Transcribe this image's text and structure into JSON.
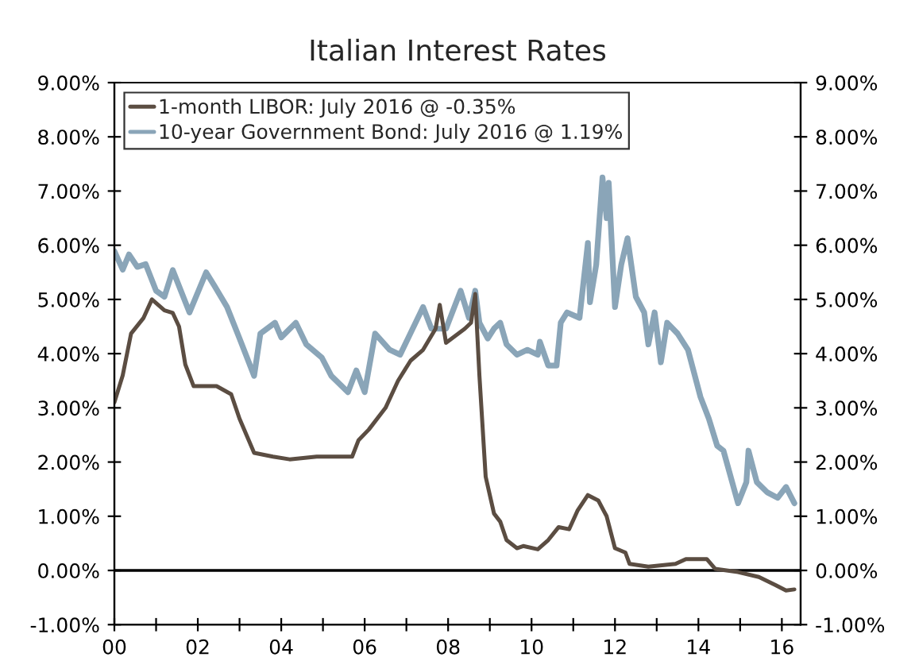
{
  "chart_data": {
    "type": "line",
    "title": "Italian Interest Rates",
    "xlim": [
      2000,
      2016.45
    ],
    "xticks": [
      {
        "value": 2000,
        "label": "00"
      },
      {
        "value": 2001,
        "label": null
      },
      {
        "value": 2002,
        "label": "02"
      },
      {
        "value": 2003,
        "label": null
      },
      {
        "value": 2004,
        "label": "04"
      },
      {
        "value": 2005,
        "label": null
      },
      {
        "value": 2006,
        "label": "06"
      },
      {
        "value": 2007,
        "label": null
      },
      {
        "value": 2008,
        "label": "08"
      },
      {
        "value": 2009,
        "label": null
      },
      {
        "value": 2010,
        "label": "10"
      },
      {
        "value": 2011,
        "label": null
      },
      {
        "value": 2012,
        "label": "12"
      },
      {
        "value": 2013,
        "label": null
      },
      {
        "value": 2014,
        "label": "14"
      },
      {
        "value": 2015,
        "label": null
      },
      {
        "value": 2016,
        "label": "16"
      }
    ],
    "ylim": [
      -1,
      9
    ],
    "yticks": [
      {
        "value": -1,
        "label": "-1.00%"
      },
      {
        "value": 0,
        "label": "0.00%"
      },
      {
        "value": 1,
        "label": "1.00%"
      },
      {
        "value": 2,
        "label": "2.00%"
      },
      {
        "value": 3,
        "label": "3.00%"
      },
      {
        "value": 4,
        "label": "4.00%"
      },
      {
        "value": 5,
        "label": "5.00%"
      },
      {
        "value": 6,
        "label": "6.00%"
      },
      {
        "value": 7,
        "label": "7.00%"
      },
      {
        "value": 8,
        "label": "8.00%"
      },
      {
        "value": 9,
        "label": "9.00%"
      }
    ],
    "y2lim": [
      -1,
      9
    ],
    "y2ticks": [
      {
        "value": -1,
        "label": "-1.00%"
      },
      {
        "value": 0,
        "label": "0.00%"
      },
      {
        "value": 1,
        "label": "1.00%"
      },
      {
        "value": 2,
        "label": "2.00%"
      },
      {
        "value": 3,
        "label": "3.00%"
      },
      {
        "value": 4,
        "label": "4.00%"
      },
      {
        "value": 5,
        "label": "5.00%"
      },
      {
        "value": 6,
        "label": "6.00%"
      },
      {
        "value": 7,
        "label": "7.00%"
      },
      {
        "value": 8,
        "label": "8.00%"
      },
      {
        "value": 9,
        "label": "9.00%"
      }
    ],
    "ref_lines": [
      {
        "axis": "y",
        "value": 0,
        "color": "#000000"
      }
    ],
    "grid": false,
    "legend": "top left",
    "line_style": "solid",
    "marker": "none",
    "series": [
      {
        "name": "1-month LIBOR: July 2016 @ -0.35%",
        "color": "#5b4d42",
        "x": [
          2000.0,
          2000.2,
          2000.4,
          2000.7,
          2000.9,
          2001.2,
          2001.4,
          2001.55,
          2001.7,
          2001.9,
          2002.45,
          2002.8,
          2003.0,
          2003.35,
          2003.8,
          2004.2,
          2004.85,
          2005.7,
          2005.85,
          2006.1,
          2006.5,
          2006.8,
          2007.1,
          2007.4,
          2007.7,
          2007.8,
          2007.95,
          2008.4,
          2008.55,
          2008.65,
          2008.75,
          2008.9,
          2009.1,
          2009.25,
          2009.4,
          2009.65,
          2009.8,
          2010.15,
          2010.4,
          2010.65,
          2010.9,
          2011.1,
          2011.35,
          2011.6,
          2011.8,
          2012.0,
          2012.25,
          2012.35,
          2012.8,
          2013.45,
          2013.7,
          2014.2,
          2014.4,
          2014.95,
          2015.45,
          2015.85,
          2016.1,
          2016.3
        ],
        "values": [
          3.1,
          3.6,
          4.37,
          4.66,
          5.0,
          4.8,
          4.75,
          4.5,
          3.8,
          3.4,
          3.4,
          3.25,
          2.8,
          2.17,
          2.1,
          2.05,
          2.1,
          2.1,
          2.4,
          2.6,
          3.0,
          3.5,
          3.87,
          4.07,
          4.46,
          4.9,
          4.2,
          4.46,
          4.57,
          5.1,
          3.6,
          1.73,
          1.05,
          0.9,
          0.56,
          0.41,
          0.45,
          0.39,
          0.56,
          0.8,
          0.76,
          1.1,
          1.39,
          1.29,
          1.0,
          0.41,
          0.33,
          0.12,
          0.07,
          0.12,
          0.21,
          0.21,
          0.03,
          -0.03,
          -0.12,
          -0.27,
          -0.37,
          -0.35
        ]
      },
      {
        "name": "10-year Government Bond: July 2016 @ 1.19%",
        "color": "#8aa5b8",
        "x": [
          2000.0,
          2000.2,
          2000.35,
          2000.55,
          2000.75,
          2001.0,
          2001.2,
          2001.4,
          2001.8,
          2002.2,
          2002.4,
          2002.7,
          2003.0,
          2003.35,
          2003.5,
          2003.85,
          2004.0,
          2004.35,
          2004.6,
          2004.97,
          2005.2,
          2005.6,
          2005.8,
          2006.0,
          2006.25,
          2006.6,
          2006.85,
          2007.4,
          2007.6,
          2007.95,
          2008.3,
          2008.5,
          2008.65,
          2008.75,
          2008.95,
          2009.1,
          2009.25,
          2009.4,
          2009.65,
          2009.9,
          2010.15,
          2010.2,
          2010.4,
          2010.6,
          2010.7,
          2010.85,
          2011.15,
          2011.35,
          2011.4,
          2011.55,
          2011.7,
          2011.8,
          2011.85,
          2012.0,
          2012.15,
          2012.3,
          2012.5,
          2012.7,
          2012.8,
          2012.95,
          2013.1,
          2013.25,
          2013.5,
          2013.75,
          2014.05,
          2014.25,
          2014.45,
          2014.6,
          2014.95,
          2015.15,
          2015.2,
          2015.4,
          2015.65,
          2015.9,
          2016.1,
          2016.3
        ],
        "values": [
          5.89,
          5.55,
          5.83,
          5.6,
          5.65,
          5.16,
          5.05,
          5.54,
          4.76,
          5.5,
          5.25,
          4.86,
          4.28,
          3.59,
          4.37,
          4.57,
          4.3,
          4.57,
          4.17,
          3.93,
          3.59,
          3.29,
          3.69,
          3.29,
          4.37,
          4.07,
          3.98,
          4.86,
          4.46,
          4.46,
          5.16,
          4.66,
          5.16,
          4.57,
          4.28,
          4.46,
          4.57,
          4.17,
          3.98,
          4.07,
          3.98,
          4.22,
          3.78,
          3.78,
          4.57,
          4.76,
          4.66,
          6.04,
          4.95,
          5.64,
          7.25,
          6.5,
          7.15,
          4.86,
          5.64,
          6.13,
          5.05,
          4.76,
          4.17,
          4.76,
          3.84,
          4.57,
          4.37,
          4.07,
          3.2,
          2.8,
          2.3,
          2.21,
          1.24,
          1.63,
          2.21,
          1.63,
          1.44,
          1.34,
          1.54,
          1.24
        ]
      }
    ]
  }
}
